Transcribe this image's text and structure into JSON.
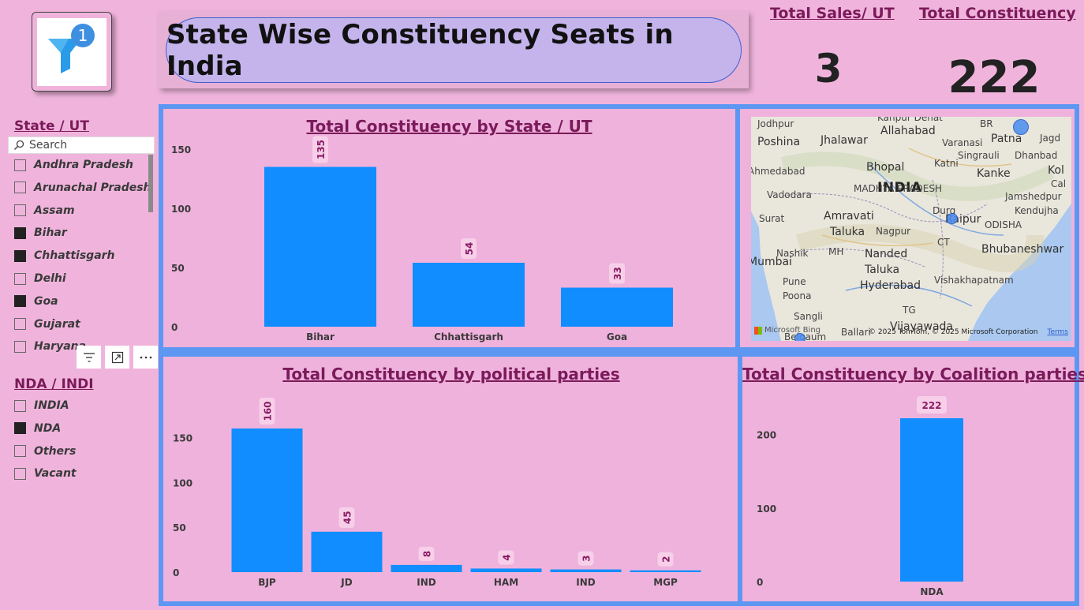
{
  "title": "State Wise Constituency Seats in India",
  "logo": {
    "icon": "filter-badge-icon",
    "badge": "1"
  },
  "kpis": [
    {
      "label": "Total Sales/ UT",
      "value": "3"
    },
    {
      "label": "Total Constituency",
      "value": "222"
    }
  ],
  "state_slicer": {
    "title": "State / UT",
    "search_placeholder": "Search",
    "items": [
      {
        "label": "Andhra Pradesh",
        "checked": false
      },
      {
        "label": "Arunachal Pradesh",
        "checked": false
      },
      {
        "label": "Assam",
        "checked": false
      },
      {
        "label": "Bihar",
        "checked": true
      },
      {
        "label": "Chhattisgarh",
        "checked": true
      },
      {
        "label": "Delhi",
        "checked": false
      },
      {
        "label": "Goa",
        "checked": true
      },
      {
        "label": "Gujarat",
        "checked": false
      },
      {
        "label": "Haryana",
        "checked": false
      }
    ]
  },
  "toolbar_icons": [
    "filter-lines-icon",
    "focus-mode-icon",
    "more-options-icon"
  ],
  "coalition_slicer": {
    "title": "NDA / INDI",
    "items": [
      {
        "label": "INDIA",
        "checked": false
      },
      {
        "label": "NDA",
        "checked": true
      },
      {
        "label": "Others",
        "checked": false
      },
      {
        "label": "Vacant",
        "checked": false
      }
    ]
  },
  "map": {
    "cities": [
      "Jodhpur",
      "Jhalawar",
      "Allahabad",
      "Varanasi",
      "Patna",
      "Jagd",
      "Poshina",
      "Singrauli",
      "Dhanbad",
      "Bhopal",
      "Katni",
      "Kanke",
      "Kol",
      "Ahmedabad",
      "INDIA",
      "MADHYA PRADESH",
      "Cal",
      "Vadodara",
      "Jamshedpur",
      "Surat",
      "Amravati",
      "Durg",
      "Raipur",
      "ODISHA",
      "Kendujha",
      "Taluka",
      "Nagpur",
      "Nashik",
      "MH",
      "CT",
      "Nanded",
      "Bhubaneshwar",
      "Mumbai",
      "Taluka",
      "Pune",
      "Vishakhapatnam",
      "Poona",
      "Hyderabad",
      "TG",
      "Sangli",
      "Vijayawada",
      "Belgaum",
      "Ballari",
      "Kanpur Dehat",
      "BR"
    ],
    "credit": "© 2025 TomTom, © 2025 Microsoft Corporation",
    "terms": "Terms",
    "provider": "Microsoft Bing"
  },
  "chart_data": [
    {
      "type": "bar",
      "title": "Total Constituency by State / UT",
      "categories": [
        "Bihar",
        "Chhattisgarh",
        "Goa"
      ],
      "values": [
        135,
        54,
        33
      ],
      "ylim": [
        0,
        150
      ],
      "yticks": [
        0,
        50,
        100,
        150
      ],
      "color": "#118dff",
      "data_labels": true,
      "data_label_rotation": "vertical"
    },
    {
      "type": "bar",
      "title": "Total Constituency by political parties",
      "categories": [
        "BJP",
        "JD",
        "IND",
        "HAM",
        "IND",
        "MGP"
      ],
      "values": [
        160,
        45,
        8,
        4,
        3,
        2
      ],
      "ylim": [
        0,
        160
      ],
      "yticks": [
        0,
        50,
        100,
        150
      ],
      "color": "#118dff",
      "data_labels": true,
      "data_label_rotation": "vertical"
    },
    {
      "type": "bar",
      "title": "Total Constituency by Coalition parties",
      "categories": [
        "NDA"
      ],
      "values": [
        222
      ],
      "ylim": [
        0,
        222
      ],
      "yticks": [
        0,
        100,
        200
      ],
      "color": "#118dff",
      "data_labels": true,
      "data_label_rotation": "horizontal"
    }
  ]
}
